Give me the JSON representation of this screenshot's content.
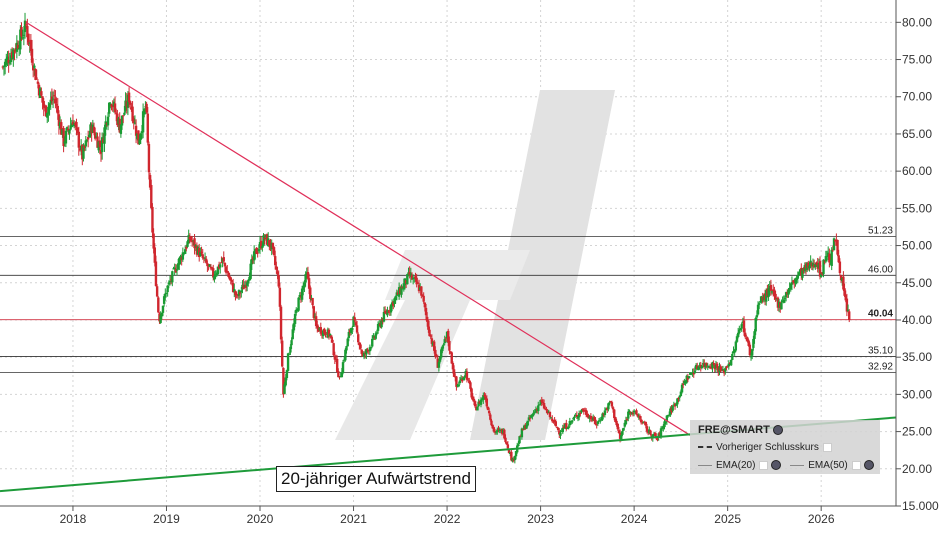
{
  "chart_data": {
    "type": "candlestick",
    "instrument": "FRE@SMART",
    "x_tick_labels": [
      "2018",
      "2019",
      "2020",
      "2021",
      "2022",
      "2023",
      "2024",
      "2025",
      "2026"
    ],
    "y_tick_labels": [
      "80.00",
      "75.00",
      "70.00",
      "65.00",
      "60.00",
      "55.00",
      "50.00",
      "45.00",
      "40.00",
      "35.00",
      "30.00",
      "25.00",
      "20.00",
      "15.000"
    ],
    "ylim": [
      15,
      83
    ],
    "xlim": [
      2017.22,
      2026.8
    ],
    "horizontal_levels": [
      {
        "label": "51.23",
        "value": 51.23
      },
      {
        "label": "46.00",
        "value": 46.0
      },
      {
        "label": "40.04",
        "value": 40.04
      },
      {
        "label": "35.10",
        "value": 35.1
      },
      {
        "label": "32.92",
        "value": 32.92
      }
    ],
    "trendlines": [
      {
        "color": "#e0305a",
        "from": {
          "x": 2017.5,
          "y": 80.0
        },
        "to": {
          "x": 2024.6,
          "y": 24.5
        }
      },
      {
        "color": "#1e9b3a",
        "from": {
          "x": 2017.22,
          "y": 17.0
        },
        "to": {
          "x": 2026.8,
          "y": 26.9
        }
      }
    ],
    "price_path": [
      [
        2017.25,
        74
      ],
      [
        2017.4,
        77
      ],
      [
        2017.5,
        79.5
      ],
      [
        2017.6,
        73
      ],
      [
        2017.7,
        68
      ],
      [
        2017.8,
        70
      ],
      [
        2017.9,
        64
      ],
      [
        2018.0,
        67
      ],
      [
        2018.1,
        62
      ],
      [
        2018.2,
        66
      ],
      [
        2018.3,
        63
      ],
      [
        2018.4,
        70
      ],
      [
        2018.5,
        66
      ],
      [
        2018.6,
        70
      ],
      [
        2018.7,
        64
      ],
      [
        2018.78,
        69
      ],
      [
        2018.82,
        58
      ],
      [
        2018.87,
        48
      ],
      [
        2018.92,
        40
      ],
      [
        2019.0,
        44
      ],
      [
        2019.1,
        47
      ],
      [
        2019.25,
        51
      ],
      [
        2019.35,
        49
      ],
      [
        2019.5,
        46
      ],
      [
        2019.6,
        48
      ],
      [
        2019.75,
        43
      ],
      [
        2019.85,
        45
      ],
      [
        2019.95,
        49
      ],
      [
        2020.05,
        51
      ],
      [
        2020.12,
        50
      ],
      [
        2020.2,
        45
      ],
      [
        2020.25,
        30
      ],
      [
        2020.3,
        35
      ],
      [
        2020.4,
        42
      ],
      [
        2020.5,
        46
      ],
      [
        2020.6,
        39
      ],
      [
        2020.75,
        38
      ],
      [
        2020.85,
        32
      ],
      [
        2020.95,
        38
      ],
      [
        2021.0,
        40
      ],
      [
        2021.1,
        35
      ],
      [
        2021.2,
        37
      ],
      [
        2021.3,
        40
      ],
      [
        2021.45,
        43
      ],
      [
        2021.6,
        46
      ],
      [
        2021.72,
        44
      ],
      [
        2021.8,
        39
      ],
      [
        2021.9,
        34
      ],
      [
        2022.0,
        38
      ],
      [
        2022.1,
        31
      ],
      [
        2022.2,
        33
      ],
      [
        2022.3,
        28
      ],
      [
        2022.4,
        30
      ],
      [
        2022.5,
        25
      ],
      [
        2022.6,
        25
      ],
      [
        2022.7,
        21
      ],
      [
        2022.8,
        25
      ],
      [
        2022.9,
        27
      ],
      [
        2023.0,
        29
      ],
      [
        2023.1,
        27
      ],
      [
        2023.2,
        25
      ],
      [
        2023.3,
        26
      ],
      [
        2023.45,
        28
      ],
      [
        2023.6,
        26
      ],
      [
        2023.75,
        29
      ],
      [
        2023.85,
        24
      ],
      [
        2023.95,
        28
      ],
      [
        2024.05,
        27
      ],
      [
        2024.15,
        25
      ],
      [
        2024.25,
        24
      ],
      [
        2024.35,
        27
      ],
      [
        2024.45,
        29
      ],
      [
        2024.55,
        32
      ],
      [
        2024.7,
        34
      ],
      [
        2024.85,
        34
      ],
      [
        2024.95,
        33
      ],
      [
        2025.05,
        35
      ],
      [
        2025.15,
        40
      ],
      [
        2025.25,
        35
      ],
      [
        2025.32,
        42
      ],
      [
        2025.45,
        44
      ],
      [
        2025.55,
        42
      ],
      [
        2025.6,
        43
      ],
      [
        2025.75,
        46
      ],
      [
        2025.85,
        47
      ],
      [
        2025.95,
        48
      ],
      [
        2026.0,
        46
      ],
      [
        2026.05,
        49
      ],
      [
        2026.1,
        48
      ],
      [
        2026.15,
        51
      ],
      [
        2026.2,
        47
      ],
      [
        2026.25,
        43
      ],
      [
        2026.3,
        40.04
      ]
    ]
  },
  "legend": {
    "title": "FRE@SMART",
    "prev_close": "Vorheriger Schlusskurs",
    "ema20": "EMA(20)",
    "ema50": "EMA(50)"
  },
  "annotation": "20-jähriger Aufwärtstrend",
  "colors": {
    "up": "#1a9b33",
    "down": "#d0262e",
    "descending_trend": "#e0305a",
    "ascending_trend": "#1e9b3a",
    "level_line": "#333333",
    "current_line": "#d03040",
    "grid": "#d4d4d4"
  }
}
